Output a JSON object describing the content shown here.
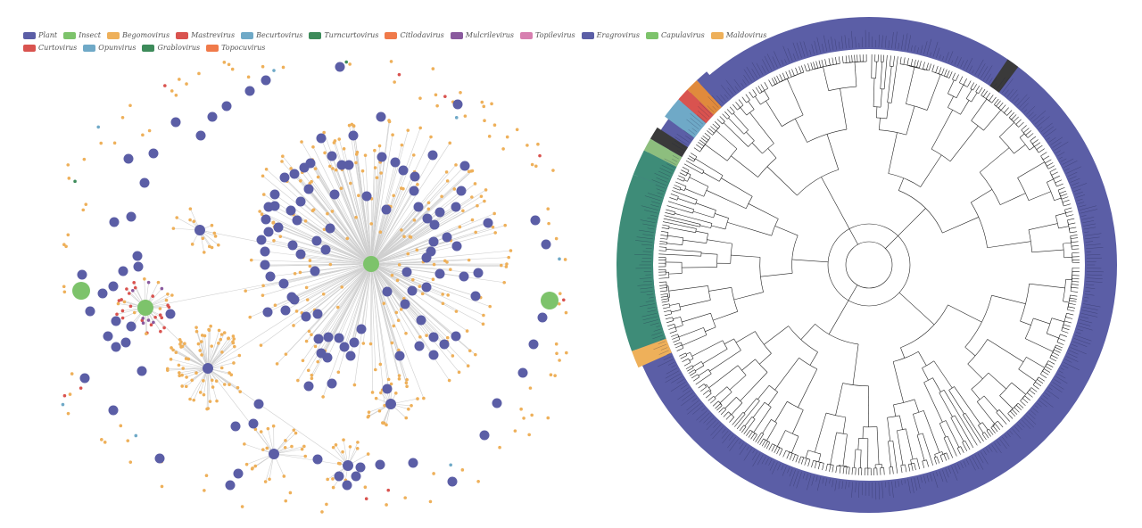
{
  "legend": {
    "rows": [
      [
        {
          "label": "Plant",
          "color": "#5b5ea6"
        },
        {
          "label": "Insect",
          "color": "#7dc36b"
        },
        {
          "label": "Begomovirus",
          "color": "#eeb05a"
        },
        {
          "label": "Mastrevirus",
          "color": "#d9534f"
        },
        {
          "label": "Becurtovirus",
          "color": "#6fa9c7"
        },
        {
          "label": "Turncurtovirus",
          "color": "#3d8b5a"
        },
        {
          "label": "Citlodavirus",
          "color": "#f07a4a"
        },
        {
          "label": "Mulcrilevirus",
          "color": "#8a5a9e"
        },
        {
          "label": "Topilevirus",
          "color": "#d77fb0"
        },
        {
          "label": "Eragrovirus",
          "color": "#5b5ea6"
        },
        {
          "label": "Capulavirus",
          "color": "#7dc36b"
        },
        {
          "label": "Maldovirus",
          "color": "#eeb05a"
        }
      ],
      [
        {
          "label": "Curtovirus",
          "color": "#d9534f"
        },
        {
          "label": "Opunvirus",
          "color": "#6fa9c7"
        },
        {
          "label": "Grablovirus",
          "color": "#3d8b5a"
        },
        {
          "label": "Topocuvirus",
          "color": "#f07a4a"
        }
      ]
    ]
  },
  "colors": {
    "plant": "#5b5ea6",
    "insect": "#7dc36b",
    "begomo": "#eeb05a",
    "mastre": "#d9534f",
    "becurto": "#6fa9c7",
    "grablo": "#3d8b5a",
    "mulcri": "#8a5a9e",
    "edge": "#cfcfcf",
    "ring": "#5b5ea6",
    "ring_dark": "#3a3a3a",
    "ring_teal": "#3e8c78",
    "branch": "#222222"
  }
}
